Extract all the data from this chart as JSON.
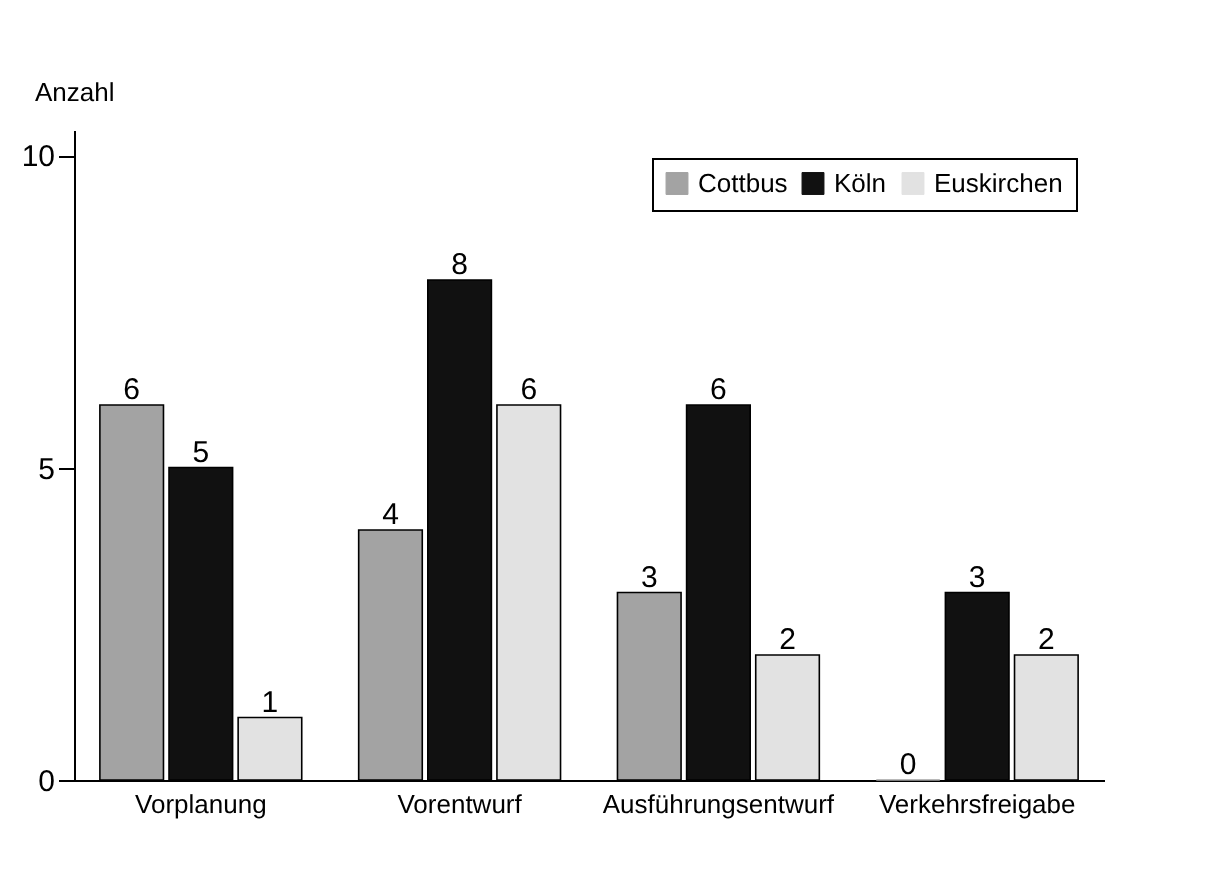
{
  "chart_data": {
    "type": "bar",
    "ylabel": "Anzahl",
    "categories": [
      "Vorplanung",
      "Vorentwurf",
      "Ausführungsentwurf",
      "Verkehrsfreigabe"
    ],
    "series": [
      {
        "name": "Cottbus",
        "color": "#a3a3a3",
        "values": [
          6,
          4,
          3,
          0
        ]
      },
      {
        "name": "Köln",
        "color": "#111111",
        "values": [
          5,
          8,
          6,
          3
        ]
      },
      {
        "name": "Euskirchen",
        "color": "#e2e2e2",
        "values": [
          1,
          6,
          2,
          2
        ]
      }
    ],
    "ylim": [
      0,
      10.4
    ],
    "yticks": [
      0,
      5,
      10
    ],
    "grid": false,
    "legend": "top right",
    "data_labels": true
  }
}
